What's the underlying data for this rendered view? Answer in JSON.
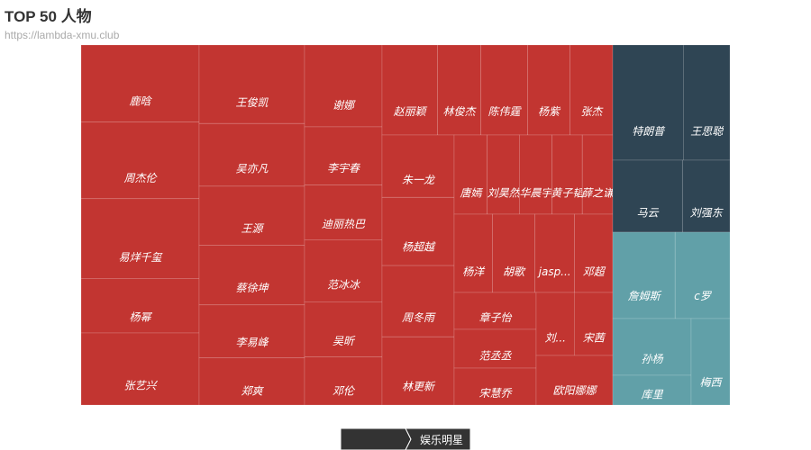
{
  "chart_data": {
    "type": "treemap",
    "title": "TOP 50 人物",
    "subtitle": "https://lambda-xmu.club",
    "breadcrumb": [
      "",
      "娱乐明星"
    ],
    "colors": {
      "entertainment": "#c23531",
      "business": "#2f4554",
      "sports": "#61a0a8",
      "cell_border": "#ffffff",
      "label": "#ffffff",
      "breadcrumb_bg": "#333333"
    },
    "groups": [
      {
        "key": "entertainment",
        "items": [
          {
            "name": "鹿晗",
            "value": 7.9
          },
          {
            "name": "周杰伦",
            "value": 7.9
          },
          {
            "name": "易烊千玺",
            "value": 8.2
          },
          {
            "name": "杨幂",
            "value": 5.6
          },
          {
            "name": "张艺兴",
            "value": 7.4
          },
          {
            "name": "王俊凯",
            "value": 8.0
          },
          {
            "name": "吴亦凡",
            "value": 6.4
          },
          {
            "name": "王源",
            "value": 6.0
          },
          {
            "name": "蔡徐坤",
            "value": 6.1
          },
          {
            "name": "李易峰",
            "value": 5.4
          },
          {
            "name": "郑爽",
            "value": 4.8
          },
          {
            "name": "谢娜",
            "value": 5.8
          },
          {
            "name": "李宇春",
            "value": 4.1
          },
          {
            "name": "迪丽热巴",
            "value": 3.9
          },
          {
            "name": "范冰冰",
            "value": 4.4
          },
          {
            "name": "吴昕",
            "value": 3.9
          },
          {
            "name": "邓伦",
            "value": 3.4
          },
          {
            "name": "赵丽颖",
            "value": 5.7
          },
          {
            "name": "林俊杰",
            "value": 4.5
          },
          {
            "name": "陈伟霆",
            "value": 4.8
          },
          {
            "name": "杨紫",
            "value": 4.4
          },
          {
            "name": "张杰",
            "value": 4.4
          },
          {
            "name": "唐嫣",
            "value": 3.8
          },
          {
            "name": "刘昊然",
            "value": 3.7
          },
          {
            "name": "华晨宇",
            "value": 3.7
          },
          {
            "name": "黄子韬",
            "value": 3.5
          },
          {
            "name": "薛之谦",
            "value": 3.5
          },
          {
            "name": "朱一龙",
            "value": 2.1
          },
          {
            "name": "杨超越",
            "value": 2.3
          },
          {
            "name": "周冬雨",
            "value": 2.4
          },
          {
            "name": "林更新",
            "value": 2.3
          },
          {
            "name": "杨洋",
            "value": 2.6
          },
          {
            "name": "胡歌",
            "value": 2.9
          },
          {
            "name": "jasp...",
            "value": 2.7
          },
          {
            "name": "邓超",
            "value": 2.6
          },
          {
            "name": "章子怡",
            "value": 2.0
          },
          {
            "name": "范丞丞",
            "value": 2.1
          },
          {
            "name": "宋慧乔",
            "value": 2.0
          },
          {
            "name": "刘...",
            "value": 1.6
          },
          {
            "name": "宋茜",
            "value": 1.6
          },
          {
            "name": "欧阳娜娜",
            "value": 1.9
          }
        ]
      },
      {
        "key": "business",
        "items": [
          {
            "name": "特朗普",
            "value": 6.4
          },
          {
            "name": "王思聪",
            "value": 4.2
          },
          {
            "name": "马云",
            "value": 6.3
          },
          {
            "name": "刘强东",
            "value": 4.3
          }
        ]
      },
      {
        "key": "sports",
        "items": [
          {
            "name": "詹姆斯",
            "value": 5.8
          },
          {
            "name": "c罗",
            "value": 5.1
          },
          {
            "name": "孙杨",
            "value": 4.2
          },
          {
            "name": "梅西",
            "value": 4.1
          },
          {
            "name": "库里",
            "value": 2.2
          }
        ]
      }
    ]
  }
}
